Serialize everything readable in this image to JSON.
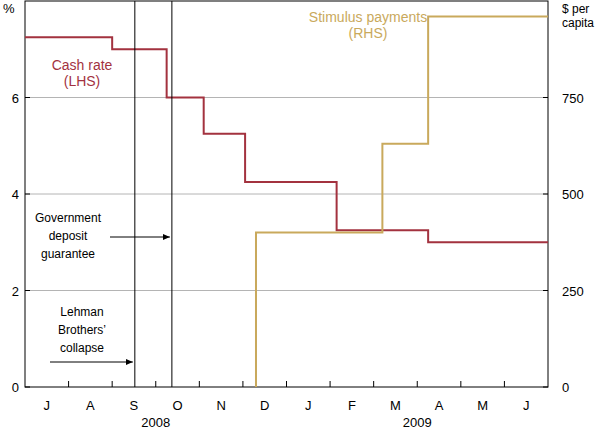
{
  "chart_data": {
    "type": "line",
    "categories": [
      "J",
      "A",
      "S",
      "O",
      "N",
      "D",
      "J",
      "F",
      "M",
      "A",
      "M",
      "J"
    ],
    "groups": [
      {
        "label": "2008",
        "span": 6
      },
      {
        "label": "2009",
        "span": 6
      }
    ],
    "xlim": [
      0,
      12
    ],
    "ylim": [
      0,
      8
    ],
    "yticks": [
      0,
      2,
      4,
      6
    ],
    "y2lim": [
      0,
      1000
    ],
    "y2ticks": [
      0,
      250,
      500,
      750
    ],
    "y_label": "%",
    "y2_label": [
      "$ per",
      "capita"
    ],
    "grid": true,
    "series": [
      {
        "name": "Cash rate (LHS)",
        "color": "#a3323f",
        "line_style": "step",
        "x": [
          0,
          2,
          3.25,
          4.1,
          5.05,
          7.15,
          9.25
        ],
        "values": [
          7.25,
          7.0,
          6.0,
          5.25,
          4.25,
          3.25,
          3.0
        ]
      },
      {
        "name": "Stimulus payments (RHS)",
        "color": "#c9a95c",
        "line_style": "step",
        "axis": "y2",
        "x": [
          5.3,
          5.3,
          8.2,
          9.25
        ],
        "values": [
          0,
          400,
          630,
          960
        ]
      }
    ],
    "annotations": [
      {
        "lines": [
          "Lehman",
          "Brothers’",
          "collapse"
        ],
        "x": 2.52
      },
      {
        "lines": [
          "Government",
          "deposit",
          "guarantee"
        ],
        "x": 3.37
      }
    ]
  }
}
